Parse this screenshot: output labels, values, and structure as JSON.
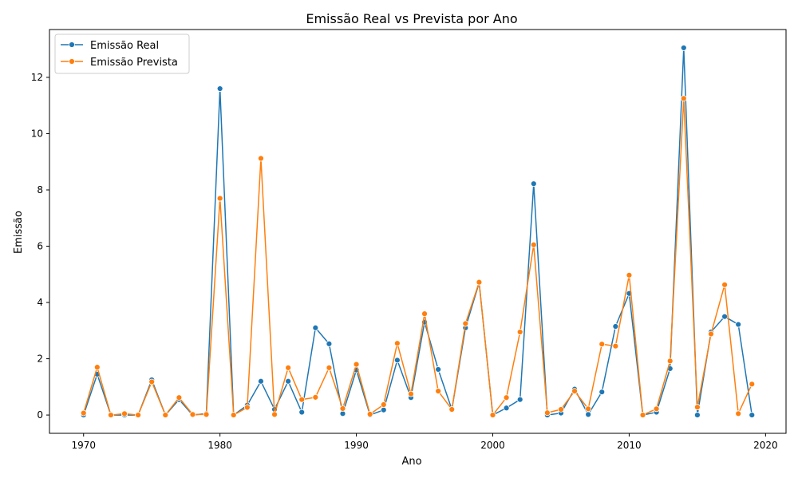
{
  "chart_data": {
    "type": "line",
    "title": "Emissão Real vs Prevista por Ano",
    "xlabel": "Ano",
    "ylabel": "Emissão",
    "xlim": [
      1967.5,
      2021.5
    ],
    "ylim": [
      -0.65,
      13.7
    ],
    "xticks": [
      1970,
      1980,
      1990,
      2000,
      2010,
      2020
    ],
    "yticks": [
      0,
      2,
      4,
      6,
      8,
      10,
      12
    ],
    "grid": false,
    "legend_position": "top-left",
    "x": [
      1970,
      1971,
      1972,
      1973,
      1974,
      1975,
      1976,
      1977,
      1978,
      1979,
      1980,
      1981,
      1982,
      1983,
      1984,
      1985,
      1986,
      1987,
      1988,
      1989,
      1990,
      1991,
      1992,
      1993,
      1994,
      1995,
      1996,
      1997,
      1998,
      1999,
      2000,
      2001,
      2002,
      2003,
      2004,
      2005,
      2006,
      2007,
      2008,
      2009,
      2010,
      2011,
      2012,
      2013,
      2014,
      2015,
      2016,
      2017,
      2018,
      2019
    ],
    "series": [
      {
        "name": "Emissão Real",
        "color": "#1f77b4",
        "values": [
          0.0,
          1.45,
          0.0,
          0.0,
          0.0,
          1.25,
          0.0,
          0.55,
          0.0,
          0.05,
          11.6,
          0.0,
          0.35,
          1.2,
          0.2,
          1.2,
          0.1,
          3.1,
          2.53,
          0.05,
          1.6,
          0.0,
          0.18,
          1.95,
          0.62,
          3.3,
          1.62,
          0.2,
          3.1,
          4.7,
          0.0,
          0.25,
          0.55,
          8.22,
          0.0,
          0.07,
          0.92,
          0.02,
          0.82,
          3.15,
          4.32,
          0.0,
          0.1,
          1.65,
          13.05,
          0.0,
          2.95,
          3.5,
          3.22,
          0.0
        ]
      },
      {
        "name": "Emissão Prevista",
        "color": "#ff7f0e",
        "values": [
          0.07,
          1.7,
          0.0,
          0.05,
          0.0,
          1.18,
          0.0,
          0.62,
          0.02,
          0.02,
          7.7,
          0.0,
          0.27,
          9.12,
          0.02,
          1.68,
          0.55,
          0.63,
          1.68,
          0.23,
          1.8,
          0.03,
          0.37,
          2.55,
          0.75,
          3.6,
          0.85,
          0.2,
          3.25,
          4.72,
          0.0,
          0.62,
          2.95,
          6.05,
          0.08,
          0.2,
          0.85,
          0.22,
          2.52,
          2.45,
          4.97,
          0.0,
          0.22,
          1.92,
          11.25,
          0.28,
          2.88,
          4.63,
          0.05,
          1.1
        ]
      }
    ]
  }
}
